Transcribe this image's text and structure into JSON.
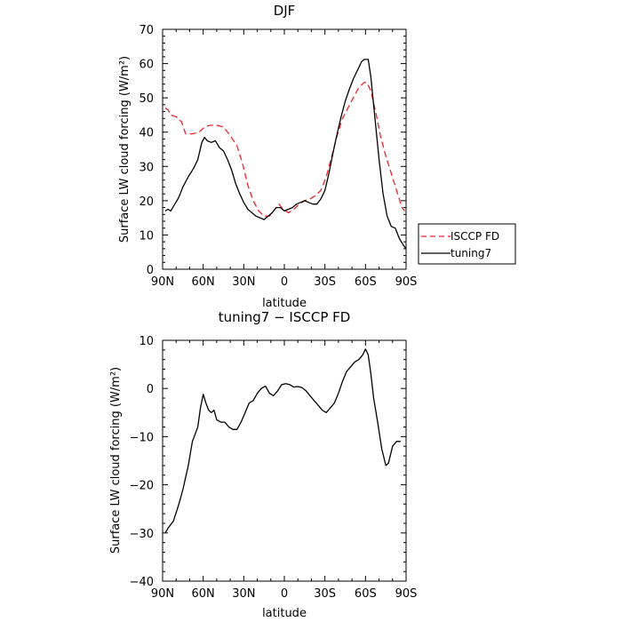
{
  "chart_data": [
    {
      "type": "line",
      "title": "DJF",
      "xlabel": "latitude",
      "ylabel": "Surface LW cloud forcing (W/m²)",
      "xlim": [
        90,
        -90
      ],
      "ylim": [
        0,
        70
      ],
      "x_ticks": [
        90,
        60,
        30,
        0,
        -30,
        -60,
        -90
      ],
      "x_tick_labels": [
        "90N",
        "60N",
        "30N",
        "0",
        "30S",
        "60S",
        "90S"
      ],
      "y_ticks": [
        0,
        10,
        20,
        30,
        40,
        50,
        60,
        70
      ],
      "y_tick_labels": [
        "0",
        "10",
        "20",
        "30",
        "40",
        "50",
        "60",
        "70"
      ],
      "legend": {
        "position": "right",
        "entries": [
          "ISCCP FD",
          "tuning7"
        ]
      },
      "series": [
        {
          "name": "ISCCP FD",
          "color": "#e8262b",
          "dash": "dashed",
          "points": [
            [
              88,
              47
            ],
            [
              86,
              46.5
            ],
            [
              84,
              45
            ],
            [
              80,
              44.5
            ],
            [
              76,
              43
            ],
            [
              73,
              39.5
            ],
            [
              68,
              39.5
            ],
            [
              63,
              40
            ],
            [
              59,
              41.5
            ],
            [
              55,
              42
            ],
            [
              50,
              42
            ],
            [
              45,
              41.5
            ],
            [
              40,
              39
            ],
            [
              35,
              36
            ],
            [
              31,
              31
            ],
            [
              27,
              24.5
            ],
            [
              23,
              20
            ],
            [
              19,
              17
            ],
            [
              15,
              15.5
            ],
            [
              11,
              15.5
            ],
            [
              8,
              17
            ],
            [
              4,
              19
            ],
            [
              1,
              17.5
            ],
            [
              -3,
              16.5
            ],
            [
              -7,
              17.5
            ],
            [
              -11,
              19
            ],
            [
              -15,
              20
            ],
            [
              -19,
              20.5
            ],
            [
              -23,
              21.5
            ],
            [
              -27,
              23
            ],
            [
              -31,
              27
            ],
            [
              -35,
              33
            ],
            [
              -39,
              39
            ],
            [
              -43,
              44
            ],
            [
              -47,
              47
            ],
            [
              -51,
              50
            ],
            [
              -55,
              53
            ],
            [
              -59,
              54.5
            ],
            [
              -61,
              54.5
            ],
            [
              -64,
              52
            ],
            [
              -68,
              45
            ],
            [
              -71,
              39
            ],
            [
              -75,
              33
            ],
            [
              -79,
              28
            ],
            [
              -83,
              23
            ],
            [
              -87,
              18
            ],
            [
              -89,
              17
            ]
          ]
        },
        {
          "name": "tuning7",
          "color": "#000000",
          "dash": "solid",
          "points": [
            [
              88,
              17
            ],
            [
              86,
              17.5
            ],
            [
              84,
              17
            ],
            [
              81,
              19
            ],
            [
              78,
              21
            ],
            [
              75,
              24
            ],
            [
              71,
              27
            ],
            [
              67,
              29.5
            ],
            [
              64,
              32
            ],
            [
              61,
              37
            ],
            [
              59,
              38.5
            ],
            [
              57,
              37.5
            ],
            [
              54,
              37
            ],
            [
              51,
              37.5
            ],
            [
              48,
              35.5
            ],
            [
              45,
              34.5
            ],
            [
              42,
              32
            ],
            [
              39,
              29
            ],
            [
              36,
              25
            ],
            [
              33,
              22
            ],
            [
              30,
              19.5
            ],
            [
              27,
              17.5
            ],
            [
              24,
              16.5
            ],
            [
              21,
              15.5
            ],
            [
              18,
              15
            ],
            [
              15,
              14.5
            ],
            [
              12,
              15.5
            ],
            [
              9,
              16.5
            ],
            [
              6,
              18
            ],
            [
              3,
              18
            ],
            [
              0,
              17
            ],
            [
              -3,
              17.5
            ],
            [
              -6,
              18
            ],
            [
              -9,
              19
            ],
            [
              -12,
              19.5
            ],
            [
              -15,
              20
            ],
            [
              -18,
              19.5
            ],
            [
              -21,
              19
            ],
            [
              -24,
              19
            ],
            [
              -27,
              20.5
            ],
            [
              -30,
              23
            ],
            [
              -33,
              28
            ],
            [
              -36,
              34
            ],
            [
              -39,
              39.5
            ],
            [
              -42,
              44.5
            ],
            [
              -45,
              49
            ],
            [
              -48,
              52.5
            ],
            [
              -51,
              55.5
            ],
            [
              -54,
              58
            ],
            [
              -57,
              60.5
            ],
            [
              -59,
              61.2
            ],
            [
              -62,
              61.2
            ],
            [
              -64,
              56
            ],
            [
              -67,
              44
            ],
            [
              -70,
              32
            ],
            [
              -73,
              22
            ],
            [
              -76,
              15.5
            ],
            [
              -79,
              12.5
            ],
            [
              -82,
              12
            ],
            [
              -85,
              9
            ],
            [
              -88,
              7
            ],
            [
              -90,
              6
            ]
          ]
        }
      ]
    },
    {
      "type": "line",
      "title": "tuning7 − ISCCP FD",
      "xlabel": "latitude",
      "ylabel": "Surface LW cloud forcing (W/m²)",
      "xlim": [
        90,
        -90
      ],
      "ylim": [
        -40,
        10
      ],
      "x_ticks": [
        90,
        60,
        30,
        0,
        -30,
        -60,
        -90
      ],
      "x_tick_labels": [
        "90N",
        "60N",
        "30N",
        "0",
        "30S",
        "60S",
        "90S"
      ],
      "y_ticks": [
        -40,
        -30,
        -20,
        -10,
        0,
        10
      ],
      "y_tick_labels": [
        "−40",
        "−30",
        "−20",
        "−10",
        "0",
        "10"
      ],
      "series": [
        {
          "color": "#000000",
          "dash": "solid",
          "points": [
            [
              88,
              -30
            ],
            [
              86,
              -29
            ],
            [
              82,
              -27.5
            ],
            [
              78,
              -24
            ],
            [
              75,
              -21
            ],
            [
              71,
              -16
            ],
            [
              68,
              -11
            ],
            [
              64,
              -8
            ],
            [
              62,
              -4
            ],
            [
              60,
              -1.2
            ],
            [
              58,
              -3
            ],
            [
              56,
              -4.5
            ],
            [
              54,
              -5
            ],
            [
              52,
              -4.5
            ],
            [
              50,
              -6.5
            ],
            [
              47,
              -7
            ],
            [
              44,
              -7
            ],
            [
              41,
              -8
            ],
            [
              38,
              -8.5
            ],
            [
              35,
              -8.5
            ],
            [
              32,
              -7
            ],
            [
              29,
              -5
            ],
            [
              26,
              -3
            ],
            [
              23,
              -2.5
            ],
            [
              20,
              -1
            ],
            [
              17,
              0
            ],
            [
              14,
              0.5
            ],
            [
              11,
              -1
            ],
            [
              8,
              -1.5
            ],
            [
              5,
              -0.5
            ],
            [
              2,
              0.8
            ],
            [
              -1,
              1
            ],
            [
              -4,
              0.8
            ],
            [
              -7,
              0.3
            ],
            [
              -10,
              0.4
            ],
            [
              -13,
              0.2
            ],
            [
              -16,
              -0.5
            ],
            [
              -19,
              -1.5
            ],
            [
              -22,
              -2.5
            ],
            [
              -25,
              -3.5
            ],
            [
              -28,
              -4.5
            ],
            [
              -31,
              -5
            ],
            [
              -34,
              -4
            ],
            [
              -37,
              -3
            ],
            [
              -40,
              -1
            ],
            [
              -43,
              1.5
            ],
            [
              -46,
              3.5
            ],
            [
              -49,
              4.5
            ],
            [
              -52,
              5.5
            ],
            [
              -55,
              6
            ],
            [
              -58,
              7
            ],
            [
              -60,
              8.2
            ],
            [
              -62,
              7
            ],
            [
              -64,
              3
            ],
            [
              -66,
              -2
            ],
            [
              -69,
              -7
            ],
            [
              -72,
              -12.5
            ],
            [
              -75,
              -16
            ],
            [
              -77,
              -15.5
            ],
            [
              -80,
              -12
            ],
            [
              -83,
              -11
            ],
            [
              -86,
              -11
            ]
          ]
        }
      ]
    }
  ]
}
